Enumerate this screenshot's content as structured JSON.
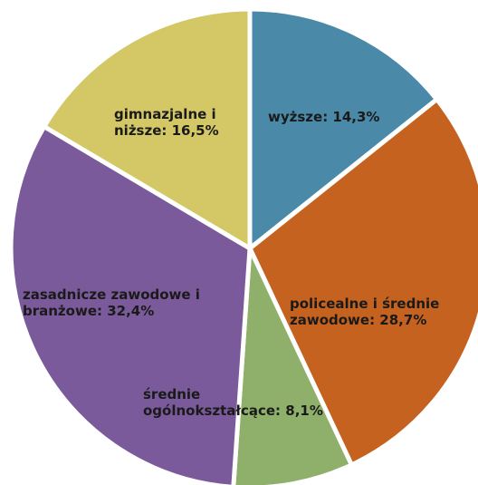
{
  "chart_data": {
    "type": "pie",
    "title": "",
    "slices": [
      {
        "label_lines": [
          "wyższe: 14,3%"
        ],
        "value": 14.3,
        "color": "#4a8aa8"
      },
      {
        "label_lines": [
          "policealne i średnie",
          "zawodowe: 28,7%"
        ],
        "value": 28.7,
        "color": "#c5621f"
      },
      {
        "label_lines": [
          "średnie",
          "ogólnokształcące: 8,1%"
        ],
        "value": 8.1,
        "color": "#8fb06a"
      },
      {
        "label_lines": [
          "zasadnicze zawodowe i",
          "branżowe: 32,4%"
        ],
        "value": 32.4,
        "color": "#7a5a9a"
      },
      {
        "label_lines": [
          "gimnazjalne i",
          "niższe: 16,5%"
        ],
        "value": 16.5,
        "color": "#d3c865"
      }
    ]
  }
}
